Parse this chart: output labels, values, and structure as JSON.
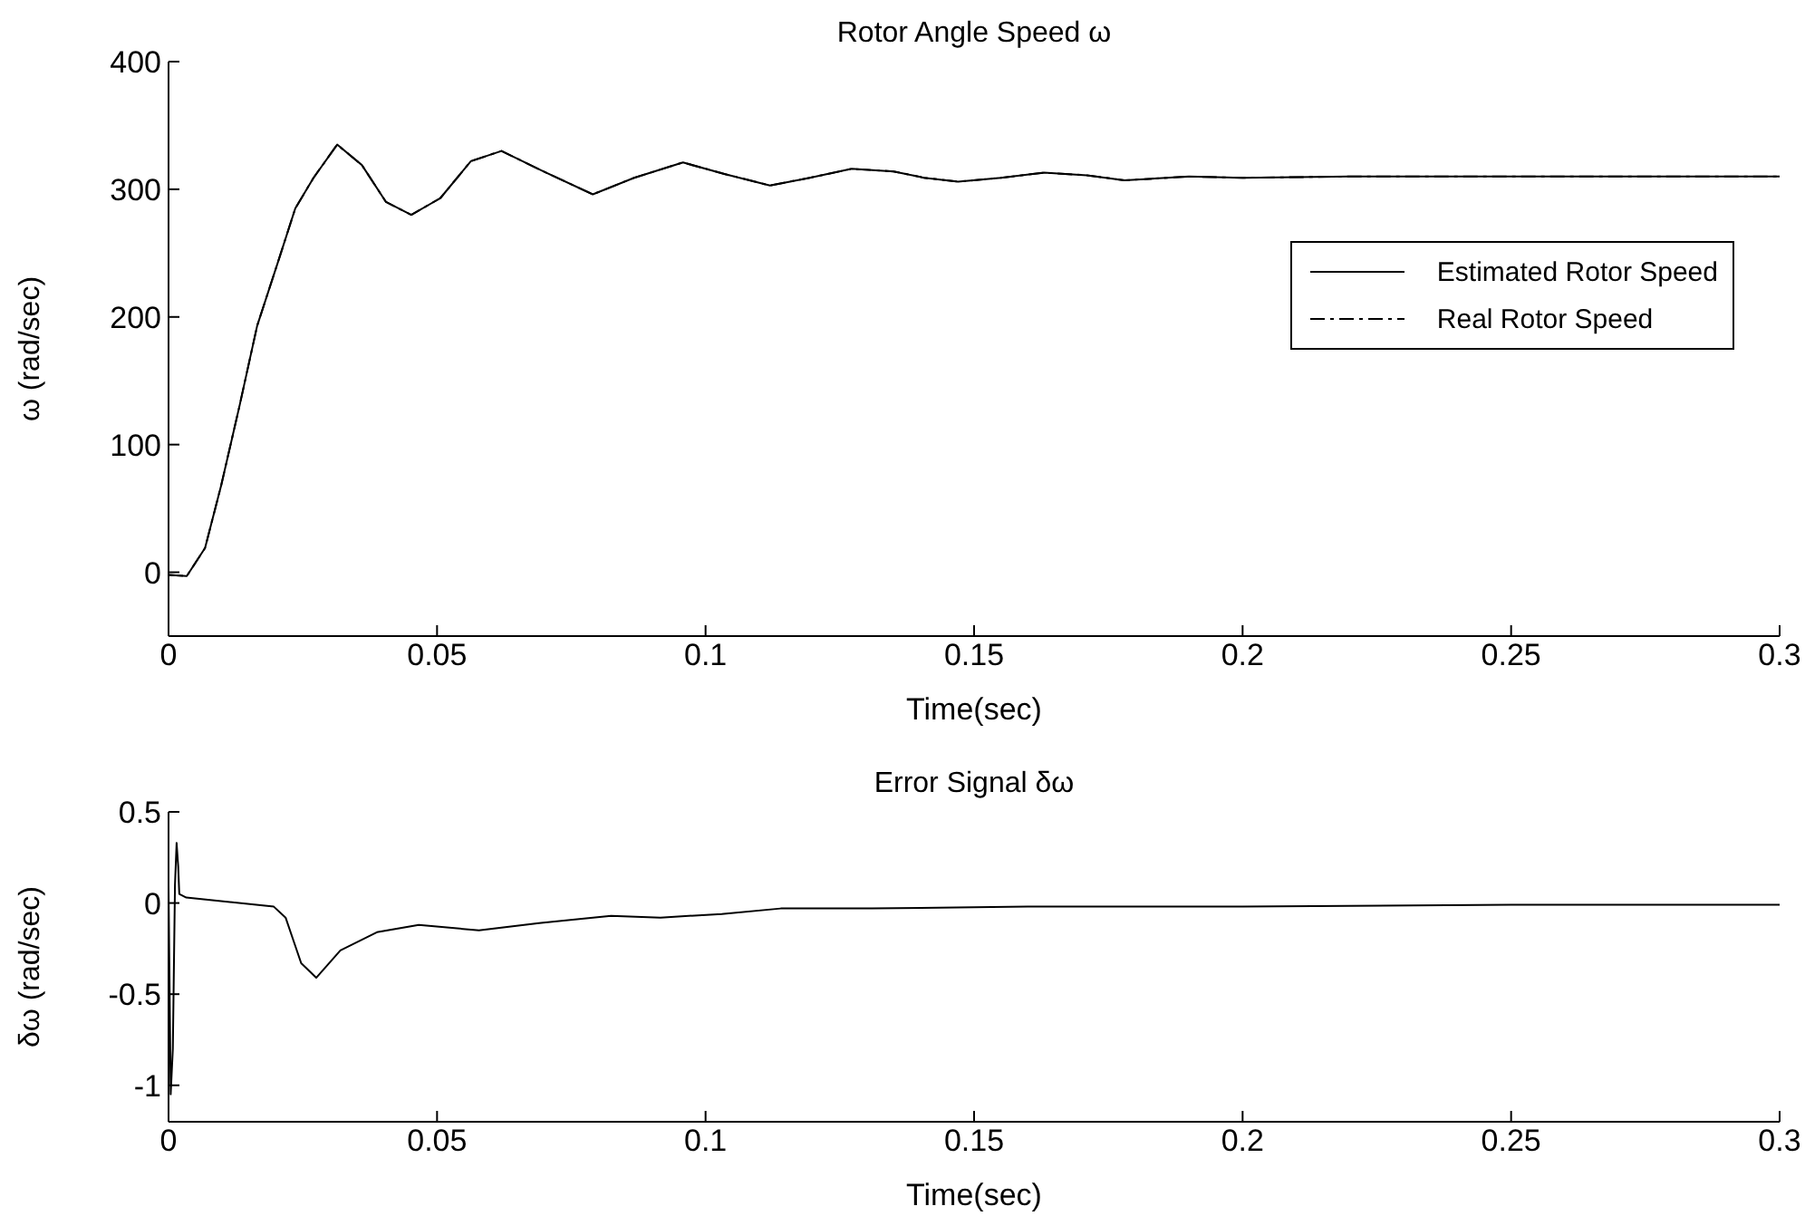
{
  "chart_data": [
    {
      "type": "line",
      "title": "Rotor Angle Speed ω",
      "xlabel": "Time(sec)",
      "ylabel": "ω (rad/sec)",
      "x": [
        0,
        0.0034,
        0.0068,
        0.0098,
        0.0132,
        0.0165,
        0.0203,
        0.0236,
        0.027,
        0.0314,
        0.036,
        0.0405,
        0.0452,
        0.0506,
        0.0563,
        0.062,
        0.0698,
        0.079,
        0.0867,
        0.0958,
        0.1035,
        0.112,
        0.1194,
        0.1272,
        0.135,
        0.1407,
        0.147,
        0.155,
        0.163,
        0.171,
        0.178,
        0.19,
        0.2,
        0.22,
        0.25,
        0.27,
        0.3
      ],
      "series": [
        {
          "name": "Estimated Rotor Speed",
          "color": "#000000",
          "line_style": "solid",
          "values": [
            -2,
            -3,
            19,
            68,
            130,
            193,
            242,
            285,
            309,
            335,
            319,
            290,
            280,
            293,
            322,
            330,
            314,
            296,
            309,
            321,
            312,
            303,
            309,
            316,
            314,
            309,
            306,
            309,
            313,
            311,
            307,
            310,
            309,
            310,
            310,
            310,
            310
          ]
        },
        {
          "name": "Real Rotor Speed",
          "color": "#000000",
          "line_style": "dashed",
          "values": [
            -2,
            -3,
            19,
            68,
            130,
            193,
            242,
            285,
            309,
            335,
            319,
            290,
            280,
            293,
            322,
            330,
            314,
            296,
            309,
            321,
            312,
            303,
            309,
            316,
            314,
            309,
            306,
            309,
            313,
            311,
            307,
            310,
            309,
            310,
            310,
            310,
            310
          ]
        }
      ],
      "xlim": [
        0,
        0.3
      ],
      "xticks": [
        0,
        0.05,
        0.1,
        0.15,
        0.2,
        0.25,
        0.3
      ],
      "ylim": [
        -50,
        400
      ],
      "yticks": [
        0,
        100,
        200,
        300,
        400
      ],
      "legend": "right"
    },
    {
      "type": "line",
      "title": "Error Signal δω",
      "xlabel": "Time(sec)",
      "ylabel": "δω (rad/sec)",
      "x": [
        0,
        0.0004,
        0.0008,
        0.0012,
        0.0015,
        0.0018,
        0.002,
        0.0033,
        0.0196,
        0.0218,
        0.0247,
        0.0275,
        0.032,
        0.0388,
        0.0466,
        0.0578,
        0.069,
        0.0824,
        0.0916,
        0.103,
        0.114,
        0.131,
        0.16,
        0.2,
        0.25,
        0.3
      ],
      "series": [
        {
          "color": "#000000",
          "values": [
            0.1,
            -1.05,
            -0.8,
            0.1,
            0.33,
            0.2,
            0.05,
            0.03,
            -0.02,
            -0.08,
            -0.33,
            -0.41,
            -0.26,
            -0.16,
            -0.12,
            -0.15,
            -0.11,
            -0.07,
            -0.08,
            -0.06,
            -0.03,
            -0.03,
            -0.02,
            -0.02,
            -0.01,
            -0.01
          ]
        }
      ],
      "xlim": [
        0,
        0.3
      ],
      "xticks": [
        0,
        0.05,
        0.1,
        0.15,
        0.2,
        0.25,
        0.3
      ],
      "ylim": [
        -1.2,
        0.5
      ],
      "yticks": [
        -1,
        -0.5,
        0,
        0.5
      ]
    }
  ]
}
